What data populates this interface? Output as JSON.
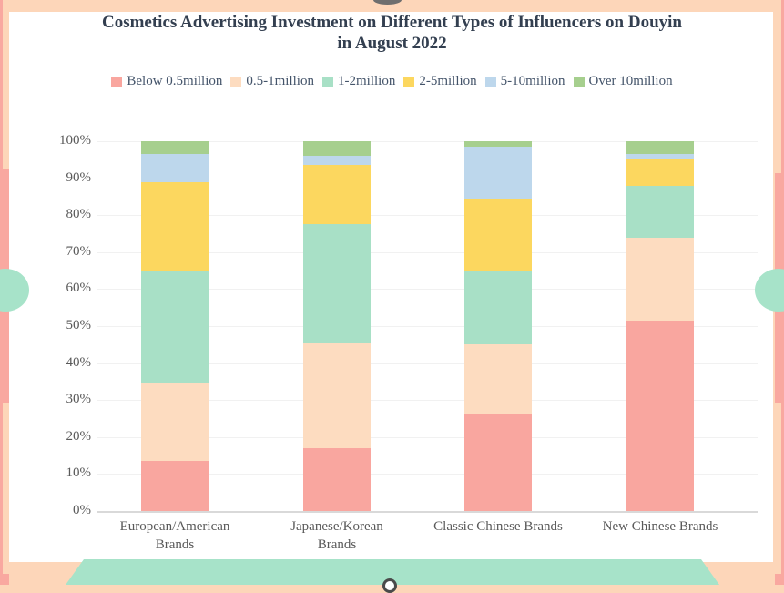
{
  "page": {
    "background_color": "#fdd6b9",
    "accent_salmon": "#f9a8a0",
    "accent_mint": "#a7e3c9",
    "panel_color": "#ffffff",
    "title_color": "#333f50",
    "legend_text_color": "#44546a",
    "axis_text_color": "#595959"
  },
  "chart_data": {
    "type": "bar",
    "stacked": true,
    "percent_stacked": true,
    "title": "Cosmetics Advertising Investment on Different Types of Influencers on Douyin in August 2022",
    "title_lines": [
      "Cosmetics Advertising Investment on Different Types of Influencers on Douyin",
      "in August 2022"
    ],
    "legend_position": "top",
    "grid": true,
    "xlabel": "",
    "ylabel": "",
    "ylim": [
      0,
      100
    ],
    "yticks": [
      "0%",
      "10%",
      "20%",
      "30%",
      "40%",
      "50%",
      "60%",
      "70%",
      "80%",
      "90%",
      "100%"
    ],
    "ytick_values": [
      0,
      10,
      20,
      30,
      40,
      50,
      60,
      70,
      80,
      90,
      100
    ],
    "categories": [
      "European/American Brands",
      "Japanese/Korean Brands",
      "Classic Chinese Brands",
      "New Chinese Brands"
    ],
    "category_lines": [
      [
        "European/American",
        "Brands"
      ],
      [
        "Japanese/Korean",
        "Brands"
      ],
      [
        "Classic Chinese Brands"
      ],
      [
        "New Chinese Brands"
      ]
    ],
    "series": [
      {
        "name": "Below 0.5million",
        "color": "#f9a69f",
        "values": [
          13.5,
          17.0,
          26.0,
          51.5
        ]
      },
      {
        "name": "0.5-1million",
        "color": "#fddcc0",
        "values": [
          21.0,
          28.5,
          19.0,
          22.5
        ]
      },
      {
        "name": "1-2million",
        "color": "#a8e0c6",
        "values": [
          30.5,
          32.0,
          20.0,
          14.0
        ]
      },
      {
        "name": "2-5million",
        "color": "#fcd75f",
        "values": [
          24.0,
          16.0,
          19.5,
          7.0
        ]
      },
      {
        "name": "5-10million",
        "color": "#bdd7ec",
        "values": [
          7.5,
          2.5,
          14.0,
          1.5
        ]
      },
      {
        "name": "Over 10million",
        "color": "#a6cf8e",
        "values": [
          3.5,
          4.0,
          1.5,
          3.5
        ]
      }
    ]
  }
}
